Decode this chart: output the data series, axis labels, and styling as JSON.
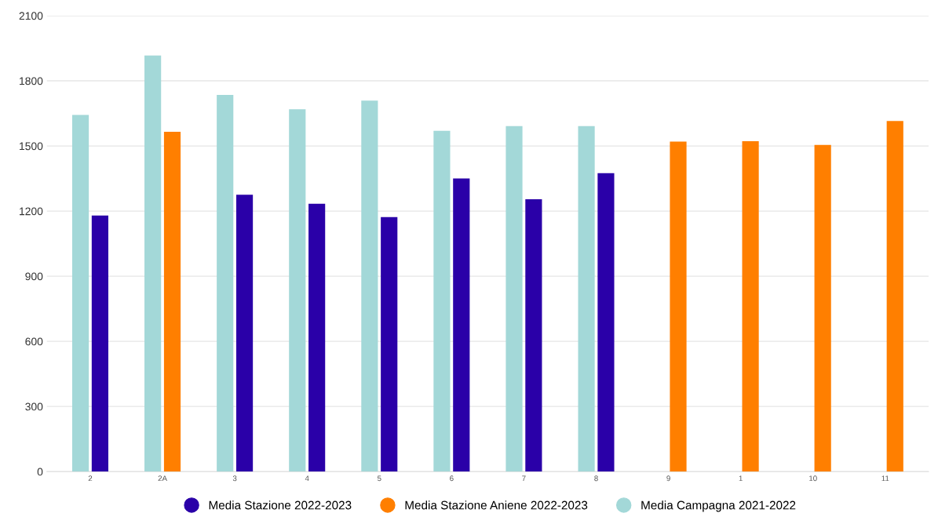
{
  "chart_data": {
    "type": "bar",
    "categories": [
      "2",
      "2A",
      "3",
      "4",
      "5",
      "6",
      "7",
      "8",
      "9",
      "1",
      "10",
      "11"
    ],
    "series": [
      {
        "name": "Media Stazione 2022-2023",
        "color": "#2a00a8",
        "values": [
          1180,
          null,
          1275,
          1234,
          1172,
          1350,
          1255,
          1375,
          null,
          null,
          null,
          null
        ]
      },
      {
        "name": "Media Stazione Aniene 2022-2023",
        "color": "#ff7f00",
        "values": [
          null,
          1565,
          null,
          null,
          null,
          null,
          null,
          null,
          1520,
          1522,
          1505,
          1615
        ]
      },
      {
        "name": "Media Campagna 2021-2022",
        "color": "#a3d8d8",
        "values": [
          1643,
          1917,
          1735,
          1669,
          1709,
          1570,
          1592,
          1592,
          null,
          null,
          null,
          null
        ]
      }
    ],
    "ylim": [
      0,
      2100
    ],
    "yticks": [
      0,
      300,
      600,
      900,
      1200,
      1500,
      1800,
      2100
    ],
    "grid": "y",
    "legend": "bottom"
  }
}
